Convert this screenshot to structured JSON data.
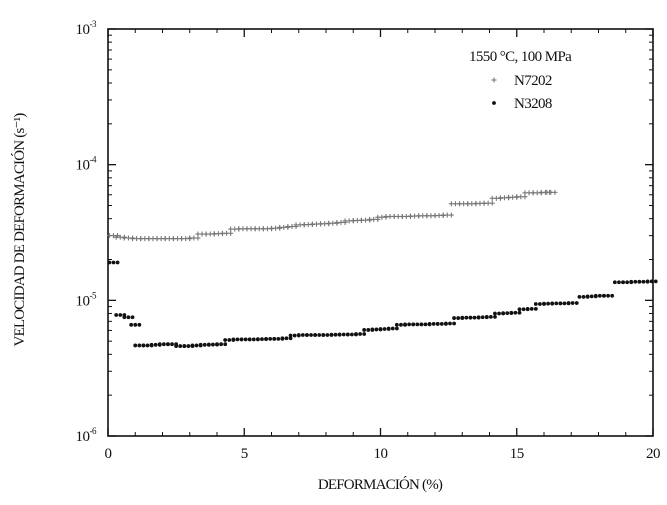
{
  "chart_data": {
    "type": "scatter",
    "title": "",
    "xlabel": "DEFORMACIÓN (%)",
    "ylabel": "VELOCIDAD DE DEFORMACIÓN (s⁻¹)",
    "xlim": [
      0,
      20
    ],
    "ylim": [
      1e-06,
      0.0001
    ],
    "yscale": "log",
    "grid": false,
    "legend_position": "top-right",
    "legend_title": "1550 °C,  100 MPa",
    "x_ticks": [
      0,
      5,
      10,
      15,
      20
    ],
    "x_tick_labels": [
      "0",
      "5",
      "10",
      "15",
      "20"
    ],
    "y_ticks": [
      {
        "value": 1e-06,
        "base": "10",
        "exp": "-6"
      },
      {
        "value": 1e-05,
        "base": "10",
        "exp": "-5"
      },
      {
        "value": 0.0001,
        "base": "10",
        "exp": "-4"
      },
      {
        "value": 0.001,
        "base": "10",
        "exp": "-3"
      }
    ],
    "series": [
      {
        "name": "N7202",
        "marker": "+",
        "color": "#777777",
        "points": [
          [
            0.05,
            3e-05
          ],
          [
            0.3,
            2.92e-05
          ],
          [
            0.6,
            2.88e-05
          ],
          [
            0.9,
            2.85e-05
          ],
          [
            1.2,
            2.85e-05
          ],
          [
            1.5,
            2.85e-05
          ],
          [
            1.8,
            2.85e-05
          ],
          [
            2.1,
            2.85e-05
          ],
          [
            2.4,
            2.85e-05
          ],
          [
            2.7,
            2.85e-05
          ],
          [
            3.0,
            2.88e-05
          ],
          [
            3.3,
            3.08e-05
          ],
          [
            3.6,
            3.08e-05
          ],
          [
            3.9,
            3.1e-05
          ],
          [
            4.2,
            3.12e-05
          ],
          [
            4.5,
            3.35e-05
          ],
          [
            4.8,
            3.37e-05
          ],
          [
            5.1,
            3.37e-05
          ],
          [
            5.4,
            3.37e-05
          ],
          [
            5.7,
            3.37e-05
          ],
          [
            6.0,
            3.4e-05
          ],
          [
            6.3,
            3.45e-05
          ],
          [
            6.6,
            3.5e-05
          ],
          [
            6.9,
            3.6e-05
          ],
          [
            7.2,
            3.62e-05
          ],
          [
            7.5,
            3.65e-05
          ],
          [
            7.8,
            3.67e-05
          ],
          [
            8.1,
            3.7e-05
          ],
          [
            8.4,
            3.75e-05
          ],
          [
            8.7,
            3.85e-05
          ],
          [
            9.0,
            3.88e-05
          ],
          [
            9.3,
            3.9e-05
          ],
          [
            9.6,
            3.95e-05
          ],
          [
            9.9,
            4.1e-05
          ],
          [
            10.2,
            4.15e-05
          ],
          [
            10.5,
            4.15e-05
          ],
          [
            10.8,
            4.15e-05
          ],
          [
            11.1,
            4.18e-05
          ],
          [
            11.4,
            4.2e-05
          ],
          [
            11.7,
            4.2e-05
          ],
          [
            12.0,
            4.22e-05
          ],
          [
            12.3,
            4.25e-05
          ],
          [
            12.6,
            5.15e-05
          ],
          [
            12.9,
            5.15e-05
          ],
          [
            13.2,
            5.15e-05
          ],
          [
            13.5,
            5.18e-05
          ],
          [
            13.8,
            5.2e-05
          ],
          [
            14.1,
            5.65e-05
          ],
          [
            14.4,
            5.7e-05
          ],
          [
            14.7,
            5.75e-05
          ],
          [
            15.0,
            5.8e-05
          ],
          [
            15.3,
            6.2e-05
          ],
          [
            15.6,
            6.2e-05
          ],
          [
            15.9,
            6.25e-05
          ],
          [
            16.1,
            6.25e-05
          ]
        ]
      },
      {
        "name": "N3208",
        "marker": "dot",
        "color": "#111111",
        "points": [
          [
            0.05,
            1.9e-05
          ],
          [
            0.3,
            7.8e-06
          ],
          [
            0.6,
            7.5e-06
          ],
          [
            0.85,
            6.6e-06
          ],
          [
            1.0,
            4.65e-06
          ],
          [
            1.3,
            4.65e-06
          ],
          [
            1.6,
            4.7e-06
          ],
          [
            1.9,
            4.75e-06
          ],
          [
            2.2,
            4.75e-06
          ],
          [
            2.5,
            4.6e-06
          ],
          [
            2.8,
            4.6e-06
          ],
          [
            3.1,
            4.65e-06
          ],
          [
            3.4,
            4.7e-06
          ],
          [
            3.7,
            4.72e-06
          ],
          [
            4.0,
            4.75e-06
          ],
          [
            4.3,
            5.1e-06
          ],
          [
            4.6,
            5.15e-06
          ],
          [
            4.9,
            5.15e-06
          ],
          [
            5.2,
            5.15e-06
          ],
          [
            5.5,
            5.18e-06
          ],
          [
            5.8,
            5.2e-06
          ],
          [
            6.1,
            5.2e-06
          ],
          [
            6.4,
            5.25e-06
          ],
          [
            6.7,
            5.5e-06
          ],
          [
            7.0,
            5.55e-06
          ],
          [
            7.3,
            5.55e-06
          ],
          [
            7.6,
            5.55e-06
          ],
          [
            7.9,
            5.55e-06
          ],
          [
            8.2,
            5.58e-06
          ],
          [
            8.5,
            5.6e-06
          ],
          [
            8.8,
            5.6e-06
          ],
          [
            9.1,
            5.65e-06
          ],
          [
            9.4,
            6.05e-06
          ],
          [
            9.7,
            6.1e-06
          ],
          [
            10.0,
            6.15e-06
          ],
          [
            10.3,
            6.2e-06
          ],
          [
            10.6,
            6.6e-06
          ],
          [
            10.9,
            6.65e-06
          ],
          [
            11.2,
            6.65e-06
          ],
          [
            11.5,
            6.65e-06
          ],
          [
            11.8,
            6.7e-06
          ],
          [
            12.1,
            6.7e-06
          ],
          [
            12.4,
            6.75e-06
          ],
          [
            12.7,
            7.4e-06
          ],
          [
            13.0,
            7.45e-06
          ],
          [
            13.3,
            7.45e-06
          ],
          [
            13.6,
            7.5e-06
          ],
          [
            13.9,
            7.55e-06
          ],
          [
            14.2,
            8e-06
          ],
          [
            14.5,
            8.05e-06
          ],
          [
            14.8,
            8.1e-06
          ],
          [
            15.1,
            8.6e-06
          ],
          [
            15.4,
            8.65e-06
          ],
          [
            15.7,
            9.4e-06
          ],
          [
            16.0,
            9.45e-06
          ],
          [
            16.3,
            9.5e-06
          ],
          [
            16.6,
            9.5e-06
          ],
          [
            16.9,
            9.55e-06
          ],
          [
            17.3,
            1.06e-05
          ],
          [
            17.6,
            1.07e-05
          ],
          [
            17.9,
            1.08e-05
          ],
          [
            18.2,
            1.08e-05
          ],
          [
            18.6,
            1.36e-05
          ],
          [
            18.9,
            1.36e-05
          ],
          [
            19.2,
            1.37e-05
          ],
          [
            19.5,
            1.37e-05
          ],
          [
            19.8,
            1.38e-05
          ]
        ]
      }
    ]
  }
}
